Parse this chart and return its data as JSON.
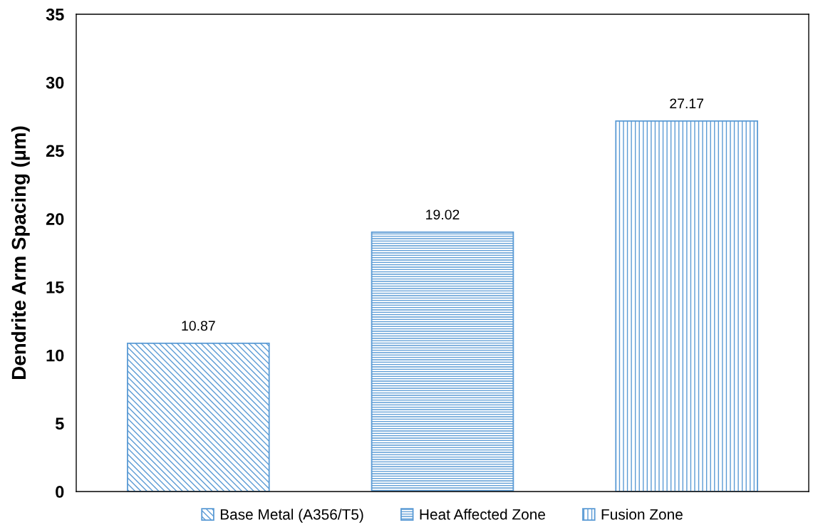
{
  "chart_data": {
    "type": "bar",
    "ylabel": "Dendrite Arm Spacing (µm)",
    "categories": [
      null,
      null,
      null
    ],
    "series": [
      {
        "name": "Base Metal (A356/T5)",
        "color": "#5b9bd5",
        "values": [
          10.87,
          null,
          null
        ]
      },
      {
        "name": "Heat Affected Zone",
        "color": "#5b9bd5",
        "values": [
          null,
          19.02,
          null
        ]
      },
      {
        "name": "Fusion Zone",
        "color": "#5b9bd5",
        "values": [
          null,
          null,
          27.17
        ]
      }
    ],
    "ylim": [
      0,
      35
    ],
    "yticks": [
      0,
      5,
      10,
      15,
      20,
      25,
      30,
      35
    ],
    "data_labels": true,
    "grid": false,
    "legend": "bottom"
  }
}
